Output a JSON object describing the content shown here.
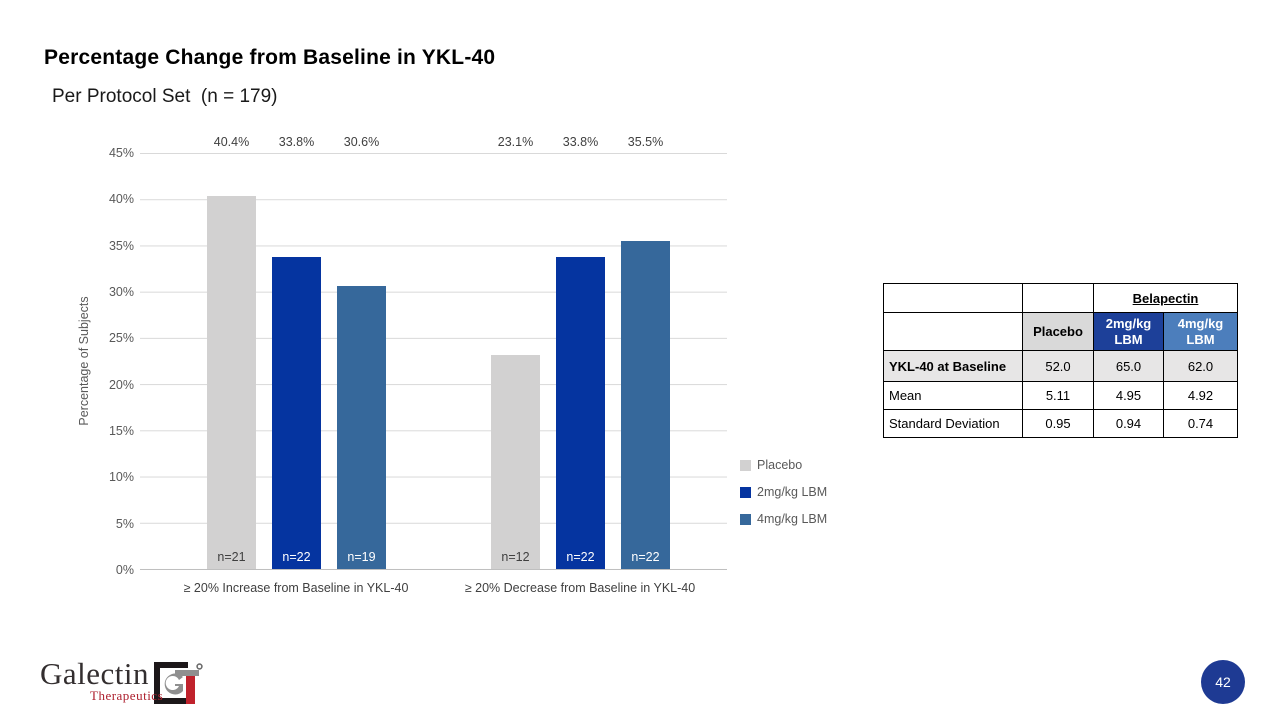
{
  "slide": {
    "title": "Percentage Change from Baseline in YKL-40",
    "subtitle": "Per Protocol Set  (n = 179)",
    "page_number": "42"
  },
  "chart_data": {
    "type": "bar",
    "title": "",
    "xlabel": "",
    "ylabel": "Percentage of Subjects",
    "ylim": [
      0,
      45
    ],
    "ytick_step": 5,
    "yticks": [
      "45%",
      "40%",
      "35%",
      "30%",
      "25%",
      "20%",
      "15%",
      "10%",
      "5%",
      "0%"
    ],
    "grid": "horizontal",
    "legend_position": "right",
    "categories": [
      "≥ 20% Increase from Baseline in YKL-40",
      "≥ 20% Decrease from Baseline in YKL-40"
    ],
    "series": [
      {
        "name": "Placebo",
        "color": "#d2d1d1",
        "values": [
          40.4,
          23.1
        ],
        "labels": [
          "40.4%",
          "23.1%"
        ],
        "n": [
          "n=21",
          "n=12"
        ]
      },
      {
        "name": "2mg/kg LBM",
        "color": "#0534a0",
        "values": [
          33.8,
          33.8
        ],
        "labels": [
          "33.8%",
          "33.8%"
        ],
        "n": [
          "n=22",
          "n=22"
        ]
      },
      {
        "name": "4mg/kg LBM",
        "color": "#36689b",
        "values": [
          30.6,
          35.5
        ],
        "labels": [
          "30.6%",
          "35.5%"
        ],
        "n": [
          "n=19",
          "n=22"
        ]
      }
    ]
  },
  "table": {
    "group_header": "Belapectin",
    "col_headers": [
      "",
      "Placebo",
      "2mg/kg LBM",
      "4mg/kg LBM"
    ],
    "rows": [
      {
        "label": "YKL-40 at Baseline",
        "values": [
          "52.0",
          "65.0",
          "62.0"
        ]
      },
      {
        "label": "Mean",
        "values": [
          "5.11",
          "4.95",
          "4.92"
        ]
      },
      {
        "label": "Standard Deviation",
        "values": [
          "0.95",
          "0.94",
          "0.74"
        ]
      }
    ]
  },
  "logo": {
    "name": "Galectin",
    "sub": "Therapeutics"
  },
  "colors": {
    "placebo_bar": "#d2d1d1",
    "dose2_bar": "#0534a0",
    "dose4_bar": "#36689b",
    "table_placebo_header": "#d9d9d9",
    "table_2mg_header": "#1d4099",
    "table_4mg_header": "#4c7ebc",
    "table_baseline_row": "#e7e6e6",
    "page_badge": "#1e3a93",
    "logo_red": "#ad1f2d"
  }
}
